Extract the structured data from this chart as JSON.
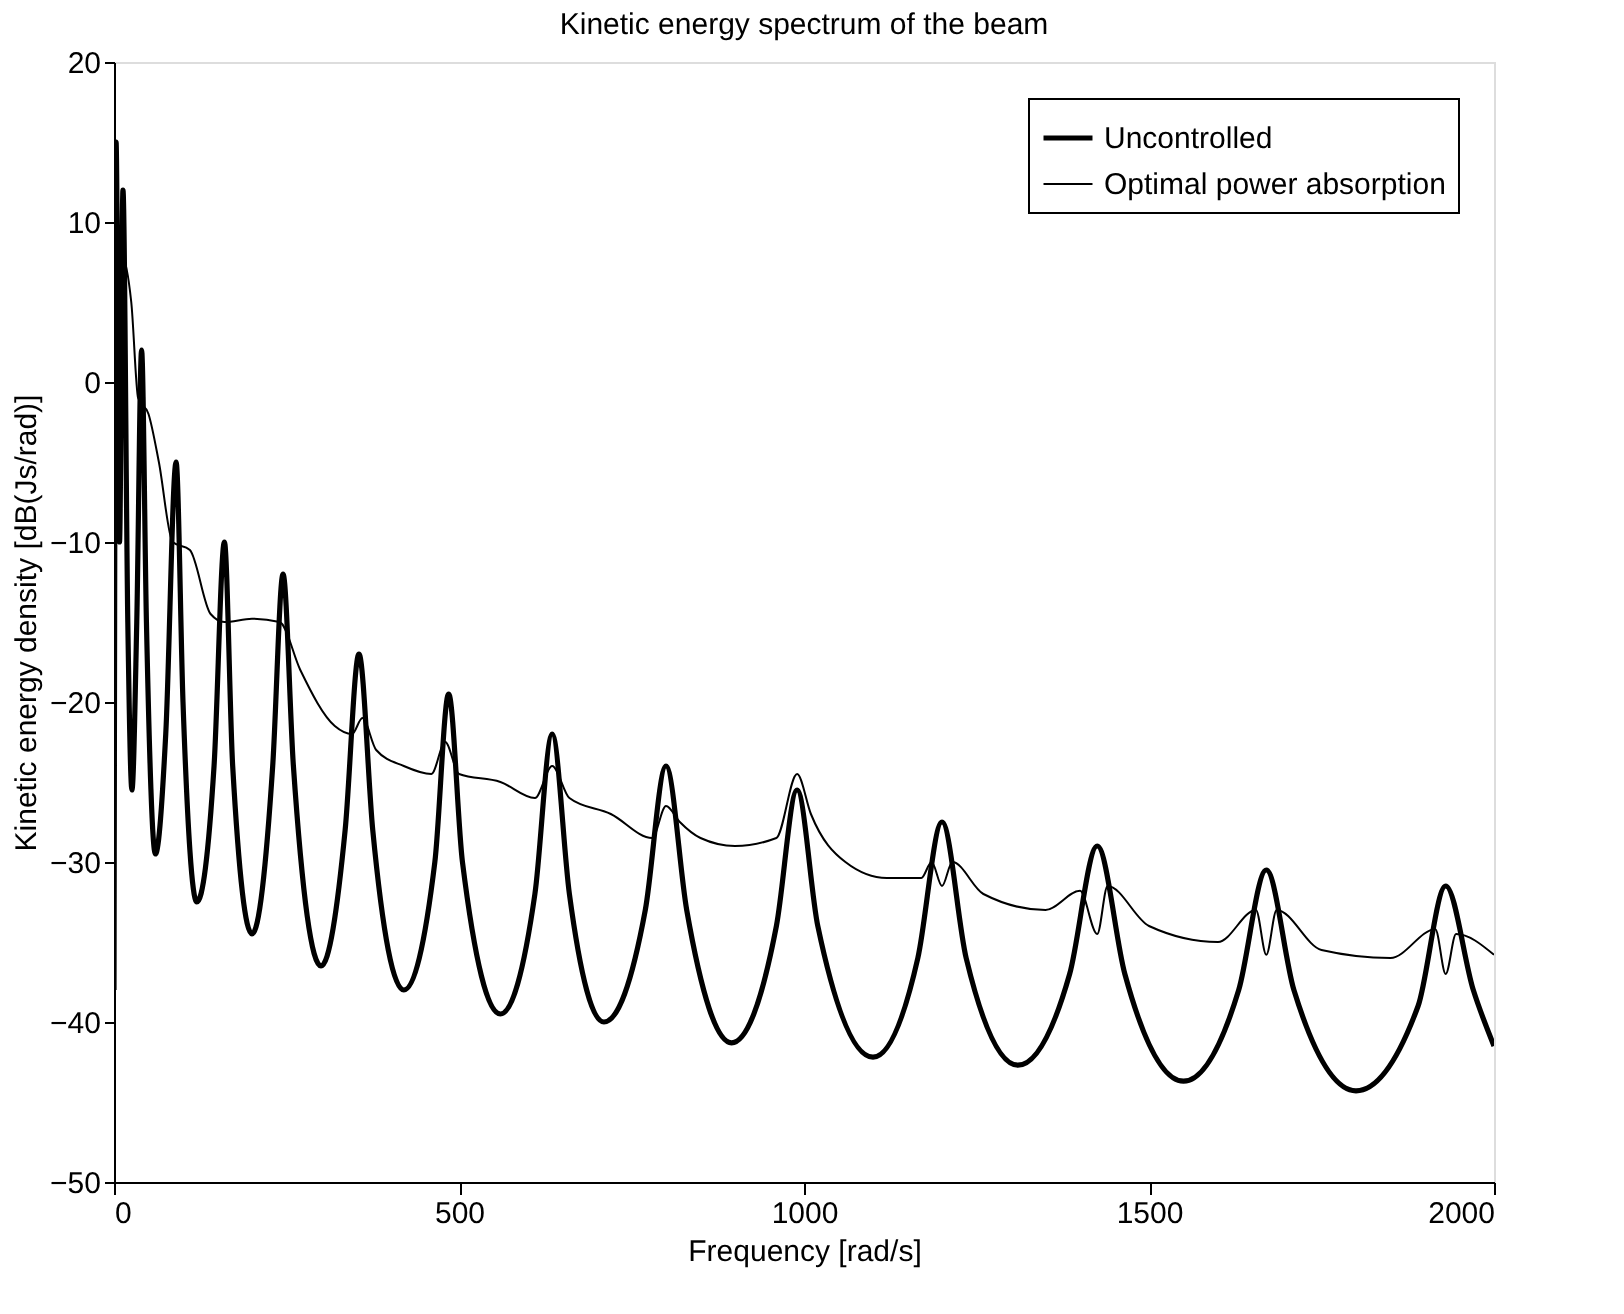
{
  "chart_data": {
    "type": "line",
    "title": "Kinetic energy spectrum of the beam",
    "xlabel": "Frequency [rad/s]",
    "ylabel": "Kinetic energy density [dB(Js/rad)]",
    "xlim": [
      0,
      2000
    ],
    "xticks": [
      0,
      500,
      1000,
      1500,
      2000
    ],
    "ylim": [
      -50,
      20
    ],
    "yticks": [
      -50,
      -40,
      -30,
      -20,
      -10,
      0,
      10,
      20
    ],
    "grid": false,
    "legend": "top right",
    "marker": "none",
    "line_style": "solid",
    "series": [
      {
        "name": "Uncontrolled",
        "color": "#000000",
        "x": [
          0,
          3,
          8,
          13,
          20,
          26,
          33,
          40,
          47,
          60,
          75,
          90,
          100,
          120,
          145,
          160,
          172,
          200,
          230,
          245,
          260,
          300,
          335,
          355,
          375,
          420,
          465,
          485,
          505,
          560,
          610,
          635,
          660,
          710,
          770,
          800,
          830,
          895,
          960,
          990,
          1020,
          1100,
          1165,
          1200,
          1235,
          1310,
          1385,
          1425,
          1465,
          1550,
          1630,
          1670,
          1710,
          1800,
          1890,
          1930,
          1970,
          2000
        ],
        "values": [
          -38,
          15,
          -10,
          12,
          -15,
          -25.5,
          -15,
          2,
          -15,
          -29.5,
          -22,
          -5,
          -20,
          -32.5,
          -24,
          -10,
          -24,
          -34.5,
          -24,
          -12,
          -24,
          -36.5,
          -28,
          -17,
          -28,
          -38,
          -30,
          -19.5,
          -30,
          -39.5,
          -32,
          -22,
          -32,
          -40,
          -33,
          -24,
          -33,
          -41.3,
          -34,
          -25.5,
          -34,
          -42.2,
          -36,
          -27.5,
          -36,
          -42.7,
          -37,
          -29,
          -37,
          -43.7,
          -38,
          -30.5,
          -38,
          -44.3,
          -39,
          -31.5,
          -38,
          -41.5
        ]
      },
      {
        "name": "Optimal power absorption",
        "color": "#000000",
        "x": [
          0,
          10,
          25,
          35,
          50,
          65,
          85,
          110,
          140,
          160,
          200,
          240,
          270,
          320,
          345,
          360,
          380,
          420,
          460,
          480,
          500,
          560,
          610,
          635,
          660,
          720,
          780,
          800,
          820,
          850,
          900,
          960,
          990,
          1010,
          1060,
          1120,
          1170,
          1185,
          1200,
          1215,
          1260,
          1350,
          1400,
          1425,
          1440,
          1500,
          1600,
          1655,
          1670,
          1685,
          1750,
          1850,
          1915,
          1930,
          1945,
          2000
        ],
        "values": [
          8,
          8,
          5,
          -1,
          -2,
          -5,
          -10,
          -10.5,
          -14.5,
          -15,
          -14.8,
          -15,
          -18,
          -21.5,
          -22,
          -21,
          -23,
          -24,
          -24.5,
          -22.5,
          -24.5,
          -25,
          -26,
          -24,
          -26,
          -27,
          -28.5,
          -26.5,
          -27.5,
          -28.5,
          -29,
          -28.5,
          -24.5,
          -27,
          -30,
          -31,
          -31,
          -30,
          -31.5,
          -30,
          -32,
          -33,
          -31.8,
          -34.5,
          -31.5,
          -34,
          -35,
          -33,
          -35.8,
          -33,
          -35.5,
          -36,
          -34.2,
          -37,
          -34.5,
          -35.8
        ]
      }
    ]
  }
}
